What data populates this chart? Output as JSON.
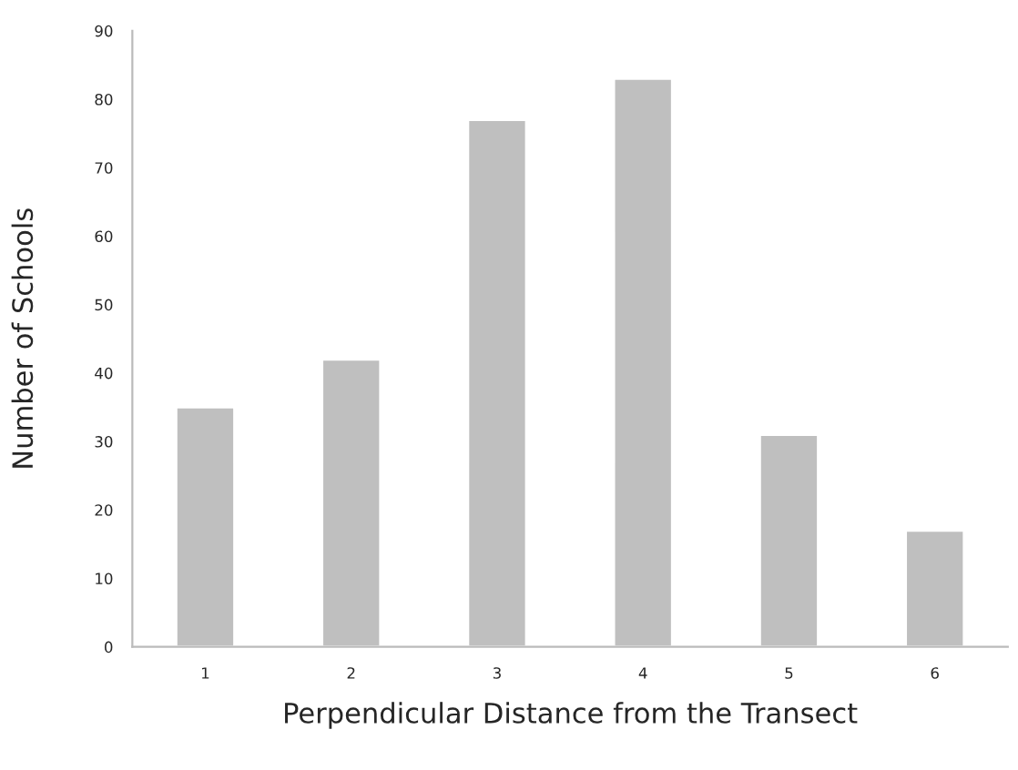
{
  "chart_data": {
    "type": "bar",
    "xlabel": "Perpendicular Distance from the Transect",
    "ylabel": "Number of Schools",
    "categories": [
      "1",
      "2",
      "3",
      "4",
      "5",
      "6"
    ],
    "values": [
      35,
      42,
      77,
      83,
      31,
      17
    ],
    "color": "#bfbfbf",
    "ylim": [
      0,
      90
    ],
    "yticks": [
      0,
      10,
      20,
      30,
      40,
      50,
      60,
      70,
      80,
      90
    ],
    "grid": false,
    "legend": false
  }
}
